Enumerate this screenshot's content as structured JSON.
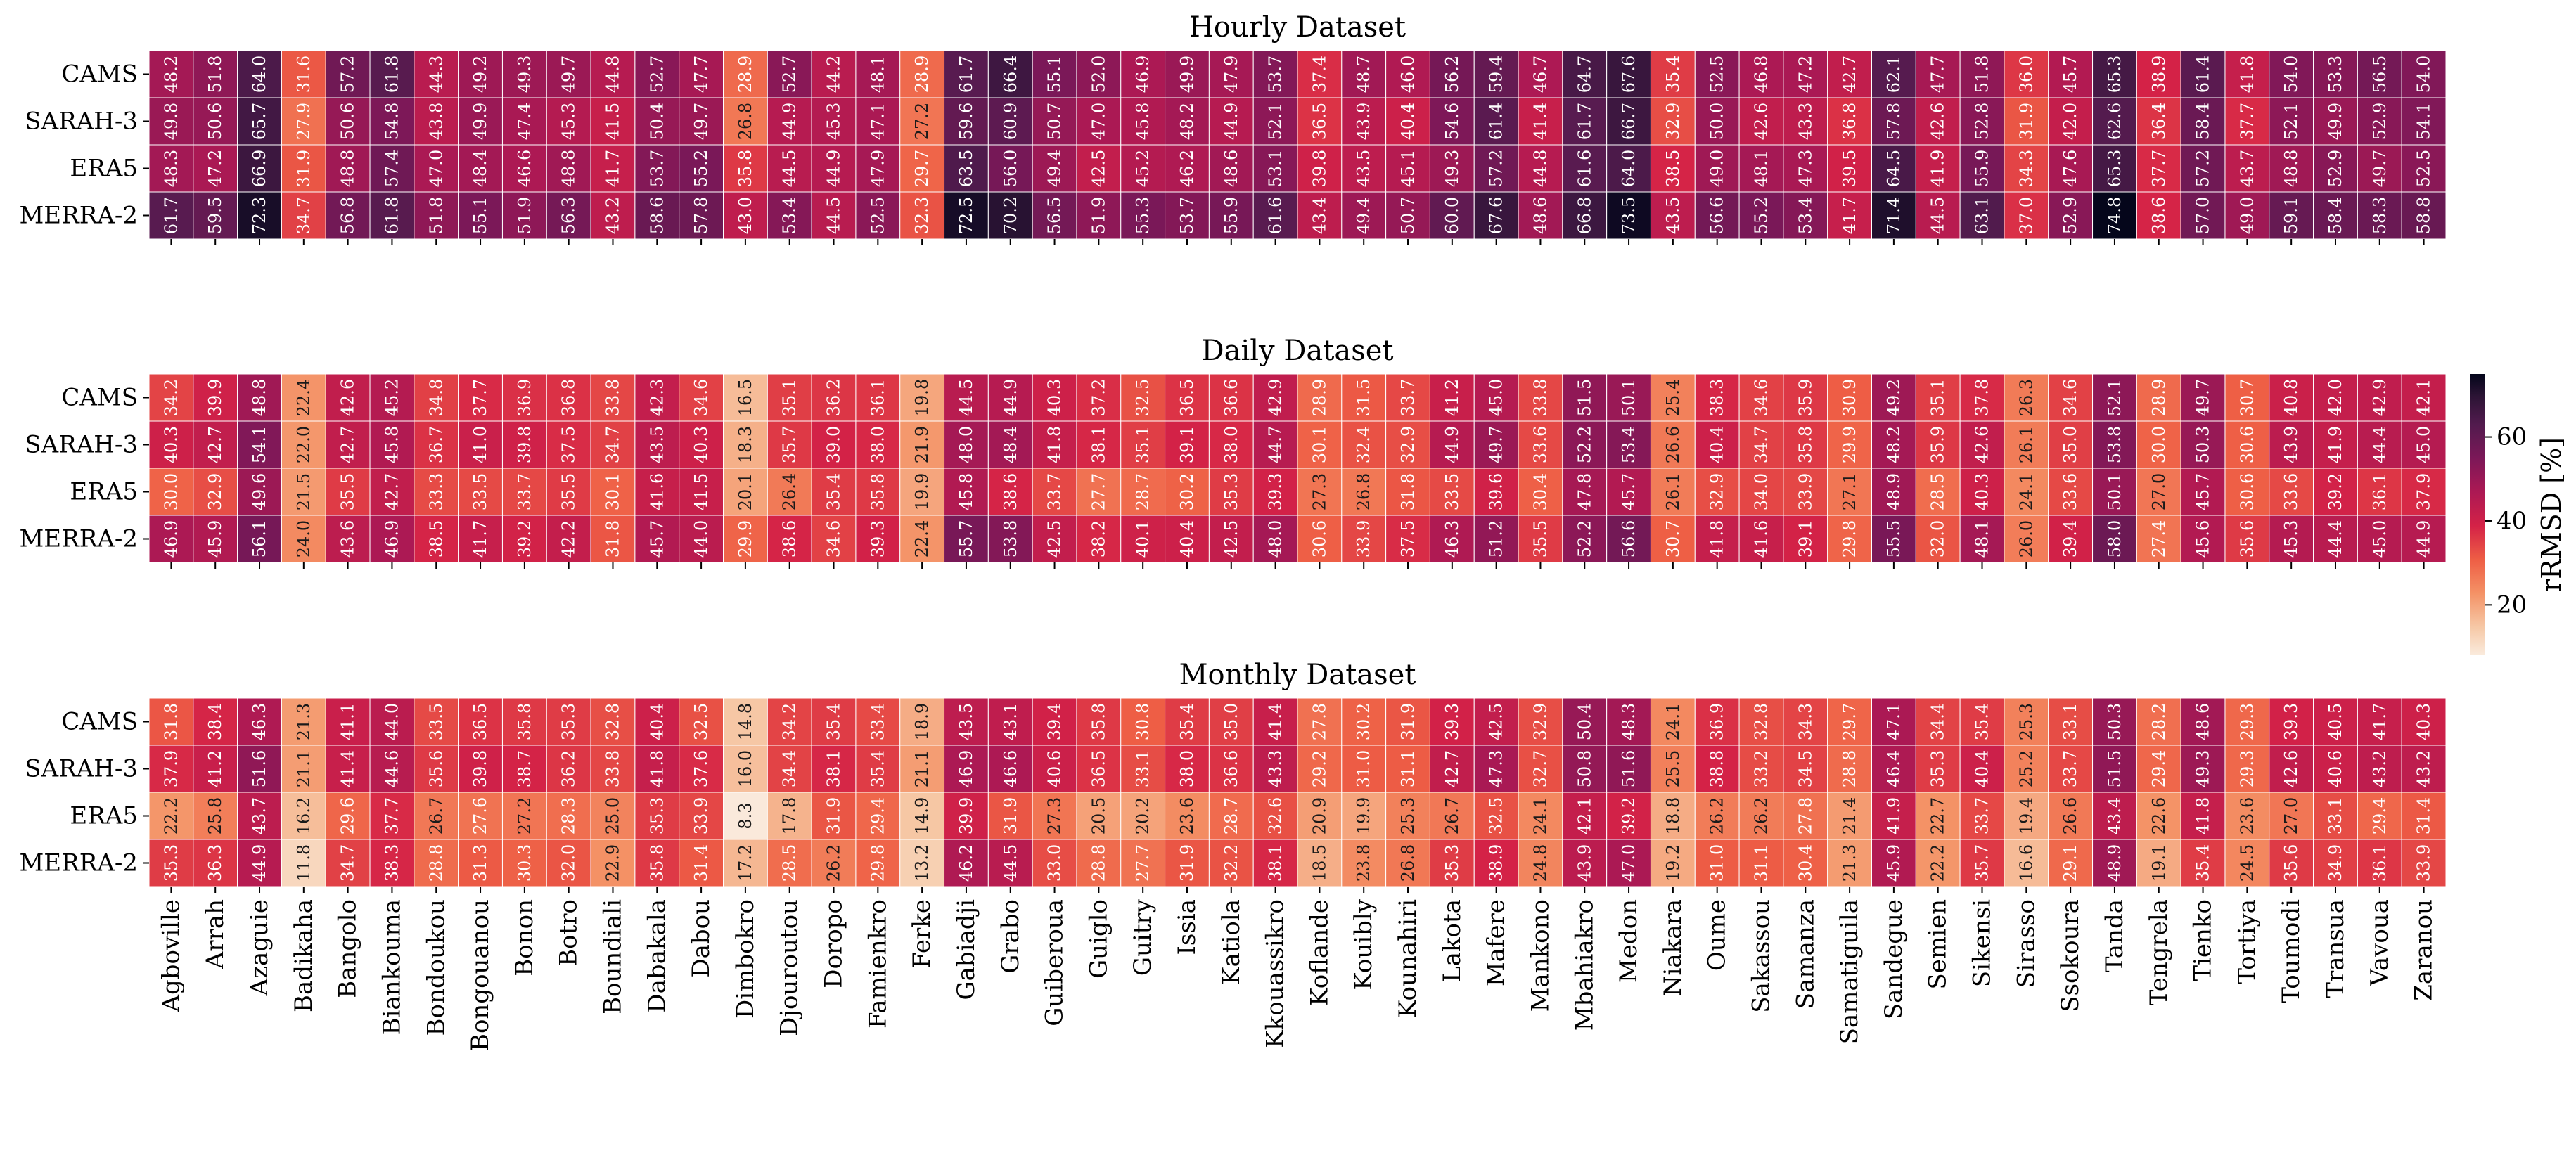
{
  "chart_data": {
    "type": "heatmap",
    "colorbar": {
      "label": "rRMSD [%]",
      "range": [
        8,
        75
      ],
      "ticks": [
        20,
        40,
        60
      ]
    },
    "row_labels": [
      "CAMS",
      "SARAH-3",
      "ERA5",
      "MERRA-2"
    ],
    "categories": [
      "Agboville",
      "Arrah",
      "Azaguie",
      "Badikaha",
      "Bangolo",
      "Biankouma",
      "Bondoukou",
      "Bongouanou",
      "Bonon",
      "Botro",
      "Boundiali",
      "Dabakala",
      "Dabou",
      "Dimbokro",
      "Djouroutou",
      "Doropo",
      "Famienkro",
      "Ferke",
      "Gabiadji",
      "Grabo",
      "Guiberoua",
      "Guiglo",
      "Guitry",
      "Issia",
      "Katiola",
      "Kkouassikro",
      "Koflande",
      "Kouibly",
      "Kounahiri",
      "Lakota",
      "Mafere",
      "Mankono",
      "Mbahiakro",
      "Medon",
      "Niakara",
      "Oume",
      "Sakassou",
      "Samanza",
      "Samatiguila",
      "Sandegue",
      "Semien",
      "Sikensi",
      "Sirasso",
      "Ssokoura",
      "Tanda",
      "Tengrela",
      "Tienko",
      "Tortiya",
      "Toumodi",
      "Transua",
      "Vavoua",
      "Zaranou"
    ],
    "panels": [
      {
        "title": "Hourly Dataset",
        "values": [
          [
            "48.2",
            "51.8",
            "64.0",
            "31.6",
            "57.2",
            "61.8",
            "44.3",
            "49.2",
            "49.3",
            "49.7",
            "44.8",
            "52.7",
            "47.7",
            "28.9",
            "52.7",
            "44.2",
            "48.1",
            "28.9",
            "61.7",
            "66.4",
            "55.1",
            "52.0",
            "46.9",
            "49.9",
            "47.9",
            "53.7",
            "37.4",
            "48.7",
            "46.0",
            "56.2",
            "59.4",
            "46.7",
            "64.7",
            "67.6",
            "35.4",
            "52.5",
            "46.8",
            "47.2",
            "42.7",
            "62.1",
            "47.7",
            "51.8",
            "36.0",
            "45.7",
            "65.3",
            "38.9",
            "61.4",
            "41.8",
            "54.0",
            "53.3",
            "56.5",
            "54.0"
          ],
          [
            "49.8",
            "50.6",
            "65.7",
            "27.9",
            "50.6",
            "54.8",
            "43.8",
            "49.9",
            "47.4",
            "45.3",
            "41.5",
            "50.4",
            "49.7",
            "26.8",
            "44.9",
            "45.3",
            "47.1",
            "27.2",
            "59.6",
            "60.9",
            "50.7",
            "47.0",
            "45.8",
            "48.2",
            "44.9",
            "52.1",
            "36.5",
            "43.9",
            "40.4",
            "54.6",
            "61.4",
            "41.4",
            "61.7",
            "66.7",
            "32.9",
            "50.0",
            "42.6",
            "43.3",
            "36.8",
            "57.8",
            "42.6",
            "52.8",
            "31.9",
            "42.0",
            "62.6",
            "36.4",
            "58.4",
            "37.7",
            "52.1",
            "49.9",
            "52.9",
            "54.1"
          ],
          [
            "48.3",
            "47.2",
            "66.9",
            "31.9",
            "48.8",
            "57.4",
            "47.0",
            "48.4",
            "46.6",
            "48.8",
            "41.7",
            "53.7",
            "55.2",
            "35.8",
            "44.5",
            "44.9",
            "47.9",
            "29.7",
            "63.5",
            "56.0",
            "49.4",
            "42.5",
            "45.2",
            "46.2",
            "48.6",
            "53.1",
            "39.8",
            "43.5",
            "45.1",
            "49.3",
            "57.2",
            "44.8",
            "61.6",
            "64.0",
            "38.5",
            "49.0",
            "48.1",
            "47.3",
            "39.5",
            "64.5",
            "41.9",
            "55.9",
            "34.3",
            "47.6",
            "65.3",
            "37.7",
            "57.2",
            "43.7",
            "48.8",
            "52.9",
            "49.7",
            "52.5"
          ],
          [
            "61.7",
            "59.5",
            "72.3",
            "34.7",
            "56.8",
            "61.8",
            "51.8",
            "55.1",
            "51.9",
            "56.3",
            "43.2",
            "58.6",
            "57.8",
            "43.0",
            "53.4",
            "44.5",
            "52.5",
            "32.3",
            "72.5",
            "70.2",
            "56.5",
            "51.9",
            "55.3",
            "53.7",
            "55.9",
            "61.6",
            "43.4",
            "49.4",
            "50.7",
            "60.0",
            "67.6",
            "48.6",
            "66.8",
            "73.5",
            "43.5",
            "56.6",
            "55.2",
            "53.4",
            "41.7",
            "71.4",
            "44.5",
            "63.1",
            "37.0",
            "52.9",
            "74.8",
            "38.6",
            "57.0",
            "49.0",
            "59.1",
            "58.4",
            "58.3",
            "58.8"
          ]
        ]
      },
      {
        "title": "Daily Dataset",
        "values": [
          [
            "34.2",
            "39.9",
            "48.8",
            "22.4",
            "42.6",
            "45.2",
            "34.8",
            "37.7",
            "36.9",
            "36.8",
            "33.8",
            "42.3",
            "34.6",
            "16.5",
            "35.1",
            "36.2",
            "36.1",
            "19.8",
            "44.5",
            "44.9",
            "40.3",
            "37.2",
            "32.5",
            "36.5",
            "36.6",
            "42.9",
            "28.9",
            "31.5",
            "33.7",
            "41.2",
            "45.0",
            "33.8",
            "51.5",
            "50.1",
            "25.4",
            "38.3",
            "34.6",
            "35.9",
            "30.9",
            "49.2",
            "35.1",
            "37.8",
            "26.3",
            "34.6",
            "52.1",
            "28.9",
            "49.7",
            "30.7",
            "40.8",
            "42.0",
            "42.9",
            "42.1"
          ],
          [
            "40.3",
            "42.7",
            "54.1",
            "22.0",
            "42.7",
            "45.8",
            "36.7",
            "41.0",
            "39.8",
            "37.5",
            "34.7",
            "43.5",
            "40.3",
            "18.3",
            "35.7",
            "39.0",
            "38.0",
            "21.9",
            "48.0",
            "48.4",
            "41.8",
            "38.1",
            "35.1",
            "39.1",
            "38.0",
            "44.7",
            "30.1",
            "32.4",
            "32.9",
            "44.9",
            "49.7",
            "33.6",
            "52.2",
            "53.4",
            "26.6",
            "40.4",
            "34.7",
            "35.8",
            "29.9",
            "48.2",
            "35.9",
            "42.6",
            "26.1",
            "35.0",
            "53.8",
            "30.0",
            "50.3",
            "30.6",
            "43.9",
            "41.9",
            "44.4",
            "45.0"
          ],
          [
            "30.0",
            "32.9",
            "49.6",
            "21.5",
            "35.5",
            "42.7",
            "33.3",
            "33.5",
            "33.7",
            "35.5",
            "30.1",
            "41.6",
            "41.5",
            "20.1",
            "26.4",
            "35.4",
            "35.8",
            "19.9",
            "45.8",
            "38.6",
            "33.7",
            "27.7",
            "28.7",
            "30.2",
            "35.3",
            "39.3",
            "27.3",
            "26.8",
            "31.8",
            "33.5",
            "39.6",
            "30.4",
            "47.8",
            "45.7",
            "26.1",
            "32.9",
            "34.0",
            "33.9",
            "27.1",
            "48.9",
            "28.5",
            "40.3",
            "24.1",
            "33.6",
            "50.1",
            "27.0",
            "45.7",
            "30.6",
            "33.6",
            "39.2",
            "36.1",
            "37.9"
          ],
          [
            "46.9",
            "45.9",
            "56.1",
            "24.0",
            "43.6",
            "46.9",
            "38.5",
            "41.7",
            "39.2",
            "42.2",
            "31.8",
            "45.7",
            "44.0",
            "29.9",
            "38.6",
            "34.6",
            "39.3",
            "22.4",
            "55.7",
            "53.8",
            "42.5",
            "38.2",
            "40.1",
            "40.4",
            "42.5",
            "48.0",
            "30.6",
            "33.9",
            "37.5",
            "46.3",
            "51.2",
            "35.5",
            "52.2",
            "56.6",
            "30.7",
            "41.8",
            "41.6",
            "39.1",
            "29.8",
            "55.5",
            "32.0",
            "48.1",
            "26.0",
            "39.4",
            "58.0",
            "27.4",
            "45.6",
            "35.6",
            "45.3",
            "44.4",
            "45.0",
            "44.9"
          ]
        ]
      },
      {
        "title": "Monthly Dataset",
        "values": [
          [
            "31.8",
            "38.4",
            "46.3",
            "21.3",
            "41.1",
            "44.0",
            "33.5",
            "36.5",
            "35.8",
            "35.3",
            "32.8",
            "40.4",
            "32.5",
            "14.8",
            "34.2",
            "35.4",
            "33.4",
            "18.9",
            "43.5",
            "43.1",
            "39.4",
            "35.8",
            "30.8",
            "35.4",
            "35.0",
            "41.4",
            "27.8",
            "30.2",
            "31.9",
            "39.3",
            "42.5",
            "32.9",
            "50.4",
            "48.3",
            "24.1",
            "36.9",
            "32.8",
            "34.3",
            "29.7",
            "47.1",
            "34.4",
            "35.4",
            "25.3",
            "33.1",
            "50.3",
            "28.2",
            "48.6",
            "29.3",
            "39.3",
            "40.5",
            "41.7",
            "40.3"
          ],
          [
            "37.9",
            "41.2",
            "51.6",
            "21.1",
            "41.4",
            "44.6",
            "35.6",
            "39.8",
            "38.7",
            "36.2",
            "33.8",
            "41.8",
            "37.6",
            "16.0",
            "34.4",
            "38.1",
            "35.4",
            "21.1",
            "46.9",
            "46.6",
            "40.6",
            "36.5",
            "33.1",
            "38.0",
            "36.6",
            "43.3",
            "29.2",
            "31.0",
            "31.1",
            "42.7",
            "47.3",
            "32.7",
            "50.8",
            "51.6",
            "25.5",
            "38.8",
            "33.2",
            "34.5",
            "28.8",
            "46.4",
            "35.3",
            "40.4",
            "25.2",
            "33.7",
            "51.5",
            "29.4",
            "49.3",
            "29.3",
            "42.6",
            "40.6",
            "43.2",
            "43.2"
          ],
          [
            "22.2",
            "25.8",
            "43.7",
            "16.2",
            "29.6",
            "37.7",
            "26.7",
            "27.6",
            "27.2",
            "28.3",
            "25.0",
            "35.3",
            "33.9",
            "8.3",
            "17.8",
            "31.9",
            "29.4",
            "14.9",
            "39.9",
            "31.9",
            "27.3",
            "20.5",
            "20.2",
            "23.6",
            "28.7",
            "32.6",
            "20.9",
            "19.9",
            "25.3",
            "26.7",
            "32.5",
            "24.1",
            "42.1",
            "39.2",
            "18.8",
            "26.2",
            "26.2",
            "27.8",
            "21.4",
            "41.9",
            "22.7",
            "33.7",
            "19.4",
            "26.6",
            "43.4",
            "22.6",
            "41.8",
            "23.6",
            "27.0",
            "33.1",
            "29.4",
            "31.4"
          ],
          [
            "35.3",
            "36.3",
            "44.9",
            "11.8",
            "34.7",
            "38.3",
            "28.8",
            "31.3",
            "30.3",
            "32.0",
            "22.9",
            "35.8",
            "31.4",
            "17.2",
            "28.5",
            "26.2",
            "29.8",
            "13.2",
            "46.2",
            "44.5",
            "33.0",
            "28.8",
            "27.7",
            "31.9",
            "32.2",
            "38.1",
            "18.5",
            "23.8",
            "26.8",
            "35.3",
            "38.9",
            "24.8",
            "43.9",
            "47.0",
            "19.2",
            "31.0",
            "31.1",
            "30.4",
            "21.3",
            "45.9",
            "22.2",
            "35.7",
            "16.6",
            "29.1",
            "48.9",
            "19.1",
            "35.4",
            "24.5",
            "35.6",
            "34.9",
            "36.1",
            "33.9"
          ]
        ]
      }
    ]
  }
}
